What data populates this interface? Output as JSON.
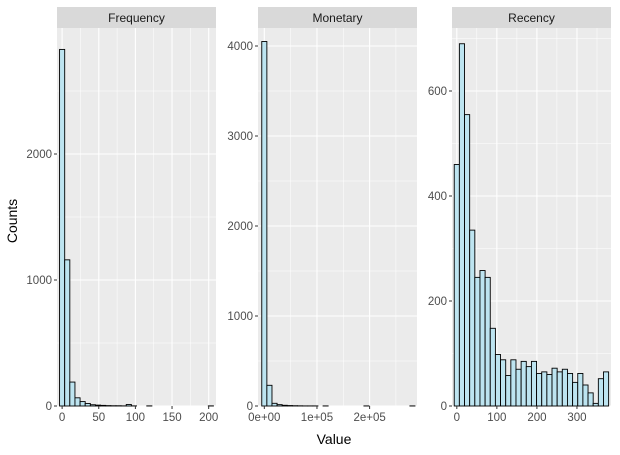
{
  "chart_data": {
    "type": "bar",
    "xlabel": "Value",
    "ylabel": "Counts",
    "grid": true,
    "colors": {
      "fill": "#bde4f0",
      "outline": "#000000",
      "panel": "#ebebeb",
      "strip": "#d9d9d9",
      "grid_major": "#ffffff"
    },
    "panels": [
      {
        "title": "Frequency",
        "xlim": [
          -7,
          210
        ],
        "ylim": [
          0,
          3000
        ],
        "xticks": [
          0,
          50,
          100,
          150,
          200
        ],
        "xtick_labels": [
          "0",
          "50",
          "100",
          "150",
          "200"
        ],
        "yticks": [
          0,
          1000,
          2000
        ],
        "ytick_labels": [
          "0",
          "1000",
          "2000"
        ],
        "bin_width": 7.0,
        "bins": [
          {
            "x": 0,
            "count": 2830
          },
          {
            "x": 7,
            "count": 1160
          },
          {
            "x": 14,
            "count": 190
          },
          {
            "x": 21,
            "count": 65
          },
          {
            "x": 28,
            "count": 35
          },
          {
            "x": 35,
            "count": 20
          },
          {
            "x": 42,
            "count": 10
          },
          {
            "x": 49,
            "count": 7
          },
          {
            "x": 56,
            "count": 5
          },
          {
            "x": 63,
            "count": 3
          },
          {
            "x": 70,
            "count": 2
          },
          {
            "x": 77,
            "count": 2
          },
          {
            "x": 84,
            "count": 1
          },
          {
            "x": 91,
            "count": 12
          },
          {
            "x": 98,
            "count": 1
          },
          {
            "x": 105,
            "count": 0
          },
          {
            "x": 112,
            "count": 0
          },
          {
            "x": 119,
            "count": 1
          },
          {
            "x": 126,
            "count": 0
          },
          {
            "x": 133,
            "count": 0
          },
          {
            "x": 140,
            "count": 0
          },
          {
            "x": 147,
            "count": 0
          },
          {
            "x": 154,
            "count": 0
          },
          {
            "x": 161,
            "count": 0
          },
          {
            "x": 168,
            "count": 0
          },
          {
            "x": 175,
            "count": 0
          },
          {
            "x": 182,
            "count": 0
          },
          {
            "x": 189,
            "count": 0
          },
          {
            "x": 196,
            "count": 0
          },
          {
            "x": 203,
            "count": 1
          }
        ]
      },
      {
        "title": "Monetary",
        "xlim": [
          -12000,
          290000
        ],
        "ylim": [
          0,
          4200
        ],
        "xticks": [
          0,
          100000,
          200000
        ],
        "xtick_labels": [
          "0e+00",
          "1e+05",
          "2e+05"
        ],
        "yticks": [
          0,
          1000,
          2000,
          3000,
          4000
        ],
        "ytick_labels": [
          "0",
          "1000",
          "2000",
          "3000",
          "4000"
        ],
        "bin_width": 9700,
        "bins": [
          {
            "x": 0,
            "count": 4050
          },
          {
            "x": 9700,
            "count": 230
          },
          {
            "x": 19400,
            "count": 30
          },
          {
            "x": 29100,
            "count": 15
          },
          {
            "x": 38800,
            "count": 8
          },
          {
            "x": 48500,
            "count": 5
          },
          {
            "x": 58200,
            "count": 3
          },
          {
            "x": 67900,
            "count": 2
          },
          {
            "x": 77600,
            "count": 1
          },
          {
            "x": 87300,
            "count": 1
          },
          {
            "x": 97000,
            "count": 1
          },
          {
            "x": 106700,
            "count": 0
          },
          {
            "x": 116400,
            "count": 1
          },
          {
            "x": 126100,
            "count": 0
          },
          {
            "x": 135800,
            "count": 0
          },
          {
            "x": 145500,
            "count": 0
          },
          {
            "x": 155200,
            "count": 0
          },
          {
            "x": 164900,
            "count": 0
          },
          {
            "x": 174600,
            "count": 0
          },
          {
            "x": 184300,
            "count": 0
          },
          {
            "x": 194000,
            "count": 1
          },
          {
            "x": 203700,
            "count": 0
          },
          {
            "x": 213400,
            "count": 0
          },
          {
            "x": 223100,
            "count": 0
          },
          {
            "x": 232800,
            "count": 0
          },
          {
            "x": 242500,
            "count": 0
          },
          {
            "x": 252200,
            "count": 0
          },
          {
            "x": 261900,
            "count": 0
          },
          {
            "x": 271600,
            "count": 0
          },
          {
            "x": 281300,
            "count": 1
          }
        ]
      },
      {
        "title": "Recency",
        "xlim": [
          -12,
          385
        ],
        "ylim": [
          0,
          720
        ],
        "xticks": [
          0,
          100,
          200,
          300
        ],
        "xtick_labels": [
          "0",
          "100",
          "200",
          "300"
        ],
        "yticks": [
          0,
          200,
          400,
          600
        ],
        "ytick_labels": [
          "0",
          "200",
          "400",
          "600"
        ],
        "bin_width": 12.85,
        "bins": [
          {
            "x": 0,
            "count": 460
          },
          {
            "x": 12.85,
            "count": 690
          },
          {
            "x": 25.7,
            "count": 555
          },
          {
            "x": 38.55,
            "count": 335
          },
          {
            "x": 51.4,
            "count": 245
          },
          {
            "x": 64.25,
            "count": 258
          },
          {
            "x": 77.1,
            "count": 245
          },
          {
            "x": 89.95,
            "count": 148
          },
          {
            "x": 102.8,
            "count": 98
          },
          {
            "x": 115.65,
            "count": 88
          },
          {
            "x": 128.5,
            "count": 58
          },
          {
            "x": 141.35,
            "count": 88
          },
          {
            "x": 154.2,
            "count": 70
          },
          {
            "x": 167.05,
            "count": 85
          },
          {
            "x": 179.9,
            "count": 75
          },
          {
            "x": 192.75,
            "count": 85
          },
          {
            "x": 205.6,
            "count": 62
          },
          {
            "x": 218.45,
            "count": 65
          },
          {
            "x": 231.3,
            "count": 60
          },
          {
            "x": 244.15,
            "count": 72
          },
          {
            "x": 257,
            "count": 65
          },
          {
            "x": 269.85,
            "count": 70
          },
          {
            "x": 282.7,
            "count": 62
          },
          {
            "x": 295.55,
            "count": 45
          },
          {
            "x": 308.4,
            "count": 62
          },
          {
            "x": 321.25,
            "count": 40
          },
          {
            "x": 334.1,
            "count": 25
          },
          {
            "x": 346.95,
            "count": 5
          },
          {
            "x": 359.8,
            "count": 52
          },
          {
            "x": 372.65,
            "count": 65
          }
        ]
      }
    ]
  }
}
